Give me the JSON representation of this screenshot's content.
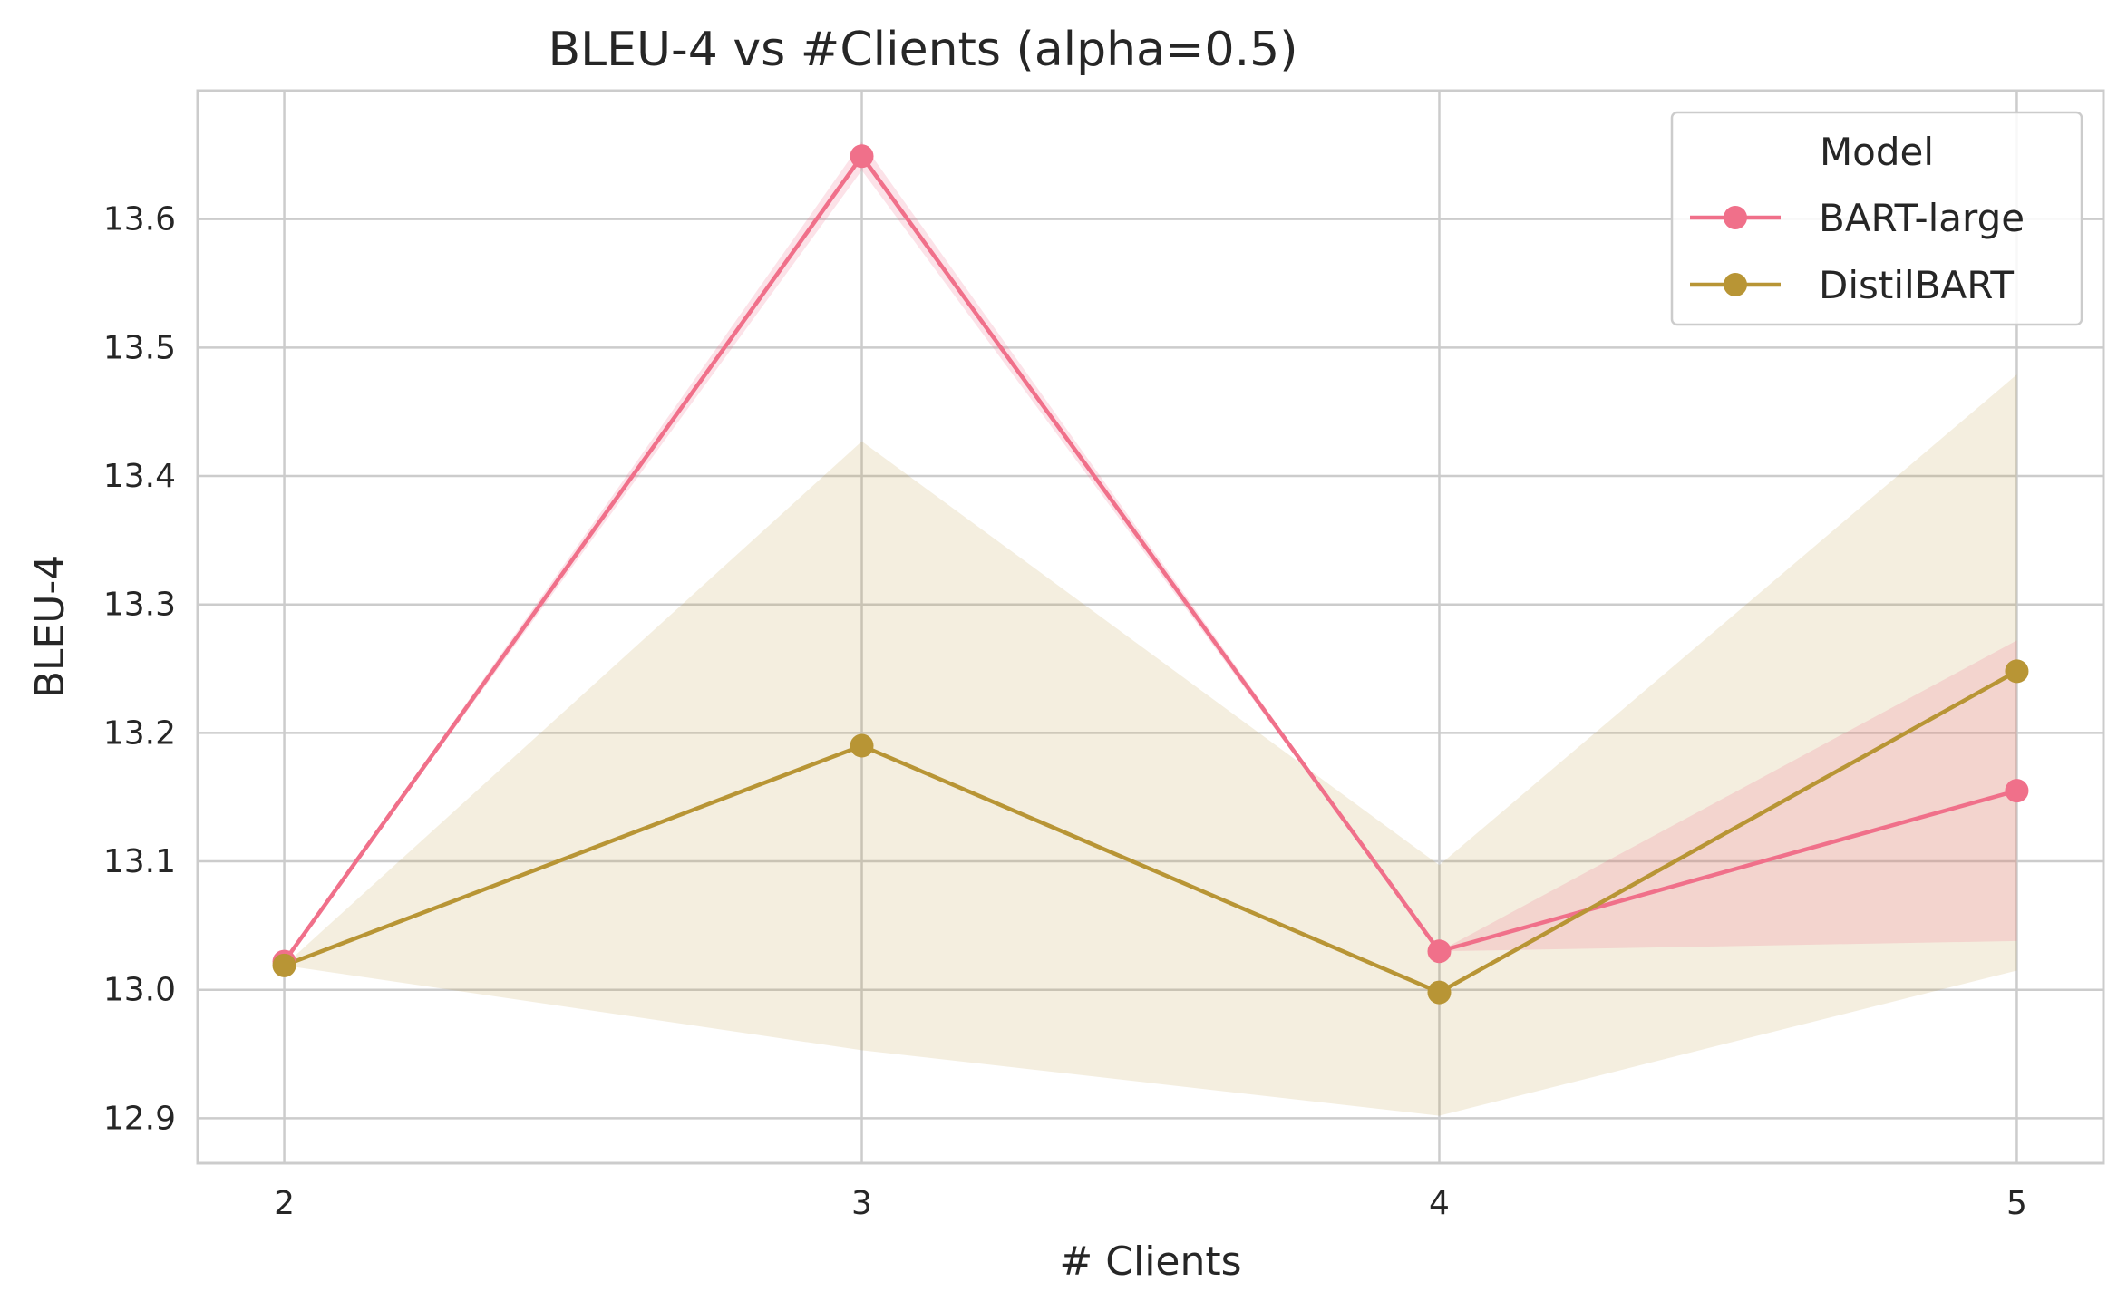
{
  "chart_data": {
    "type": "line",
    "title": "BLEU-4 vs #Clients (alpha=0.5)",
    "xlabel": "# Clients",
    "ylabel": "BLEU-4",
    "x": [
      2,
      3,
      4,
      5
    ],
    "x_ticks": [
      "2",
      "3",
      "4",
      "5"
    ],
    "xlim": [
      1.85,
      5.15
    ],
    "ylim": [
      12.865,
      13.7
    ],
    "y_ticks": [
      "12.9",
      "13.0",
      "13.1",
      "13.2",
      "13.3",
      "13.4",
      "13.5",
      "13.6"
    ],
    "grid": true,
    "legend": {
      "title": "Model",
      "position": "top-right"
    },
    "series": [
      {
        "name": "BART-large",
        "color": "#f0708a",
        "values": [
          13.022,
          13.649,
          13.03,
          13.155
        ],
        "band_low": [
          13.022,
          13.638,
          13.03,
          13.038
        ],
        "band_high": [
          13.022,
          13.66,
          13.03,
          13.272
        ]
      },
      {
        "name": "DistilBART",
        "color": "#b89535",
        "values": [
          13.019,
          13.19,
          12.998,
          13.248
        ],
        "band_low": [
          13.019,
          12.953,
          12.902,
          13.015
        ],
        "band_high": [
          13.019,
          13.427,
          13.097,
          13.479
        ]
      }
    ]
  }
}
